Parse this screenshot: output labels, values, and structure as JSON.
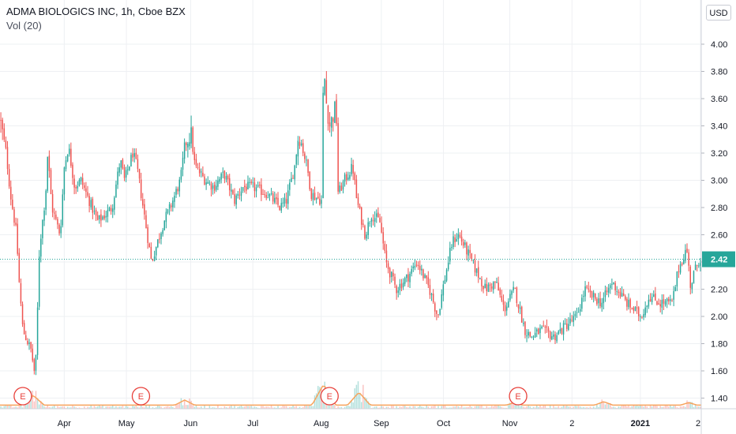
{
  "header": {
    "title": "ADMA BIOLOGICS INC, 1h, Cboe BZX",
    "volume_label": "Vol (20)",
    "currency": "USD"
  },
  "colors": {
    "up": "#26a69a",
    "down": "#ef5350",
    "last_price_bg": "#26a69a",
    "volume_ma": "#f7a35c",
    "grid": "#eef0f3",
    "earnings": "#e8413b"
  },
  "chart_data": {
    "type": "candlestick",
    "title": "ADMA BIOLOGICS INC, 1h, Cboe BZX",
    "y_axis": {
      "min": 1.3,
      "max": 4.2,
      "ticks": [
        "1.40",
        "1.60",
        "1.80",
        "2.00",
        "2.20",
        "2.40",
        "2.60",
        "2.80",
        "3.00",
        "3.20",
        "3.40",
        "3.60",
        "3.80",
        "4.00"
      ],
      "scale": "linear",
      "position": "right"
    },
    "x_axis": {
      "labels": [
        "Apr",
        "May",
        "Jun",
        "Jul",
        "Aug",
        "Sep",
        "Oct",
        "Nov",
        "2",
        "2021",
        "2"
      ],
      "label_dates": [
        "2020-04-01",
        "2020-05-01",
        "2020-06-01",
        "2020-07-01",
        "2020-08-03",
        "2020-09-01",
        "2020-10-01",
        "2020-11-02",
        "2020-12-02",
        "2021-01-04",
        "2021-02-02"
      ]
    },
    "last_price": "2.42",
    "earnings_markers": [
      {
        "label": "E",
        "date": "2020-03-12"
      },
      {
        "label": "E",
        "date": "2020-05-08"
      },
      {
        "label": "E",
        "date": "2020-08-07"
      },
      {
        "label": "E",
        "date": "2020-11-06"
      }
    ],
    "close_series": {
      "name": "ADMA",
      "points": [
        [
          "2020-03-01",
          3.45
        ],
        [
          "2020-03-04",
          3.2
        ],
        [
          "2020-03-06",
          2.9
        ],
        [
          "2020-03-09",
          2.6
        ],
        [
          "2020-03-10",
          2.3
        ],
        [
          "2020-03-12",
          1.9
        ],
        [
          "2020-03-16",
          1.75
        ],
        [
          "2020-03-18",
          1.55
        ],
        [
          "2020-03-19",
          2.0
        ],
        [
          "2020-03-20",
          2.5
        ],
        [
          "2020-03-23",
          2.9
        ],
        [
          "2020-03-24",
          3.2
        ],
        [
          "2020-03-26",
          2.8
        ],
        [
          "2020-03-30",
          2.6
        ],
        [
          "2020-04-01",
          3.1
        ],
        [
          "2020-04-03",
          3.25
        ],
        [
          "2020-04-06",
          2.95
        ],
        [
          "2020-04-09",
          3.0
        ],
        [
          "2020-04-13",
          2.85
        ],
        [
          "2020-04-17",
          2.7
        ],
        [
          "2020-04-21",
          2.75
        ],
        [
          "2020-04-24",
          2.8
        ],
        [
          "2020-04-28",
          3.15
        ],
        [
          "2020-04-30",
          3.0
        ],
        [
          "2020-05-04",
          3.2
        ],
        [
          "2020-05-06",
          3.1
        ],
        [
          "2020-05-08",
          2.9
        ],
        [
          "2020-05-11",
          2.6
        ],
        [
          "2020-05-13",
          2.4
        ],
        [
          "2020-05-15",
          2.5
        ],
        [
          "2020-05-19",
          2.7
        ],
        [
          "2020-05-22",
          2.8
        ],
        [
          "2020-05-27",
          3.0
        ],
        [
          "2020-05-29",
          3.25
        ],
        [
          "2020-06-01",
          3.35
        ],
        [
          "2020-06-03",
          3.1
        ],
        [
          "2020-06-08",
          3.0
        ],
        [
          "2020-06-12",
          2.95
        ],
        [
          "2020-06-17",
          3.05
        ],
        [
          "2020-06-22",
          2.85
        ],
        [
          "2020-06-26",
          2.95
        ],
        [
          "2020-07-01",
          2.95
        ],
        [
          "2020-07-08",
          2.9
        ],
        [
          "2020-07-14",
          2.8
        ],
        [
          "2020-07-17",
          2.85
        ],
        [
          "2020-07-21",
          3.1
        ],
        [
          "2020-07-23",
          3.35
        ],
        [
          "2020-07-27",
          3.1
        ],
        [
          "2020-07-29",
          2.9
        ],
        [
          "2020-08-03",
          2.85
        ],
        [
          "2020-08-04",
          3.9
        ],
        [
          "2020-08-05",
          3.6
        ],
        [
          "2020-08-07",
          3.4
        ],
        [
          "2020-08-10",
          3.55
        ],
        [
          "2020-08-11",
          2.9
        ],
        [
          "2020-08-14",
          3.0
        ],
        [
          "2020-08-18",
          3.1
        ],
        [
          "2020-08-20",
          2.85
        ],
        [
          "2020-08-24",
          2.6
        ],
        [
          "2020-08-27",
          2.75
        ],
        [
          "2020-08-31",
          2.7
        ],
        [
          "2020-09-03",
          2.4
        ],
        [
          "2020-09-08",
          2.2
        ],
        [
          "2020-09-14",
          2.3
        ],
        [
          "2020-09-18",
          2.4
        ],
        [
          "2020-09-24",
          2.2
        ],
        [
          "2020-09-28",
          2.0
        ],
        [
          "2020-10-01",
          2.25
        ],
        [
          "2020-10-05",
          2.55
        ],
        [
          "2020-10-08",
          2.6
        ],
        [
          "2020-10-13",
          2.45
        ],
        [
          "2020-10-16",
          2.35
        ],
        [
          "2020-10-21",
          2.2
        ],
        [
          "2020-10-26",
          2.25
        ],
        [
          "2020-10-30",
          2.05
        ],
        [
          "2020-11-04",
          2.2
        ],
        [
          "2020-11-09",
          1.9
        ],
        [
          "2020-11-12",
          1.85
        ],
        [
          "2020-11-17",
          1.9
        ],
        [
          "2020-11-23",
          1.85
        ],
        [
          "2020-11-30",
          1.95
        ],
        [
          "2020-12-04",
          2.0
        ],
        [
          "2020-12-08",
          2.2
        ],
        [
          "2020-12-11",
          2.15
        ],
        [
          "2020-12-16",
          2.1
        ],
        [
          "2020-12-21",
          2.25
        ],
        [
          "2020-12-28",
          2.1
        ],
        [
          "2021-01-04",
          2.0
        ],
        [
          "2021-01-08",
          2.15
        ],
        [
          "2021-01-13",
          2.1
        ],
        [
          "2021-01-19",
          2.1
        ],
        [
          "2021-01-22",
          2.35
        ],
        [
          "2021-01-26",
          2.5
        ],
        [
          "2021-01-28",
          2.2
        ],
        [
          "2021-01-29",
          2.3
        ],
        [
          "2021-02-01",
          2.42
        ]
      ]
    },
    "volume": {
      "name": "Vol (20)",
      "ma_spikes": [
        {
          "date": "2020-03-17",
          "level": 0.35
        },
        {
          "date": "2020-05-29",
          "level": 0.2
        },
        {
          "date": "2020-08-04",
          "level": 0.7
        },
        {
          "date": "2020-08-21",
          "level": 0.45
        },
        {
          "date": "2020-11-04",
          "level": 0.12
        },
        {
          "date": "2020-12-17",
          "level": 0.15
        },
        {
          "date": "2021-01-27",
          "level": 0.12
        }
      ]
    }
  }
}
